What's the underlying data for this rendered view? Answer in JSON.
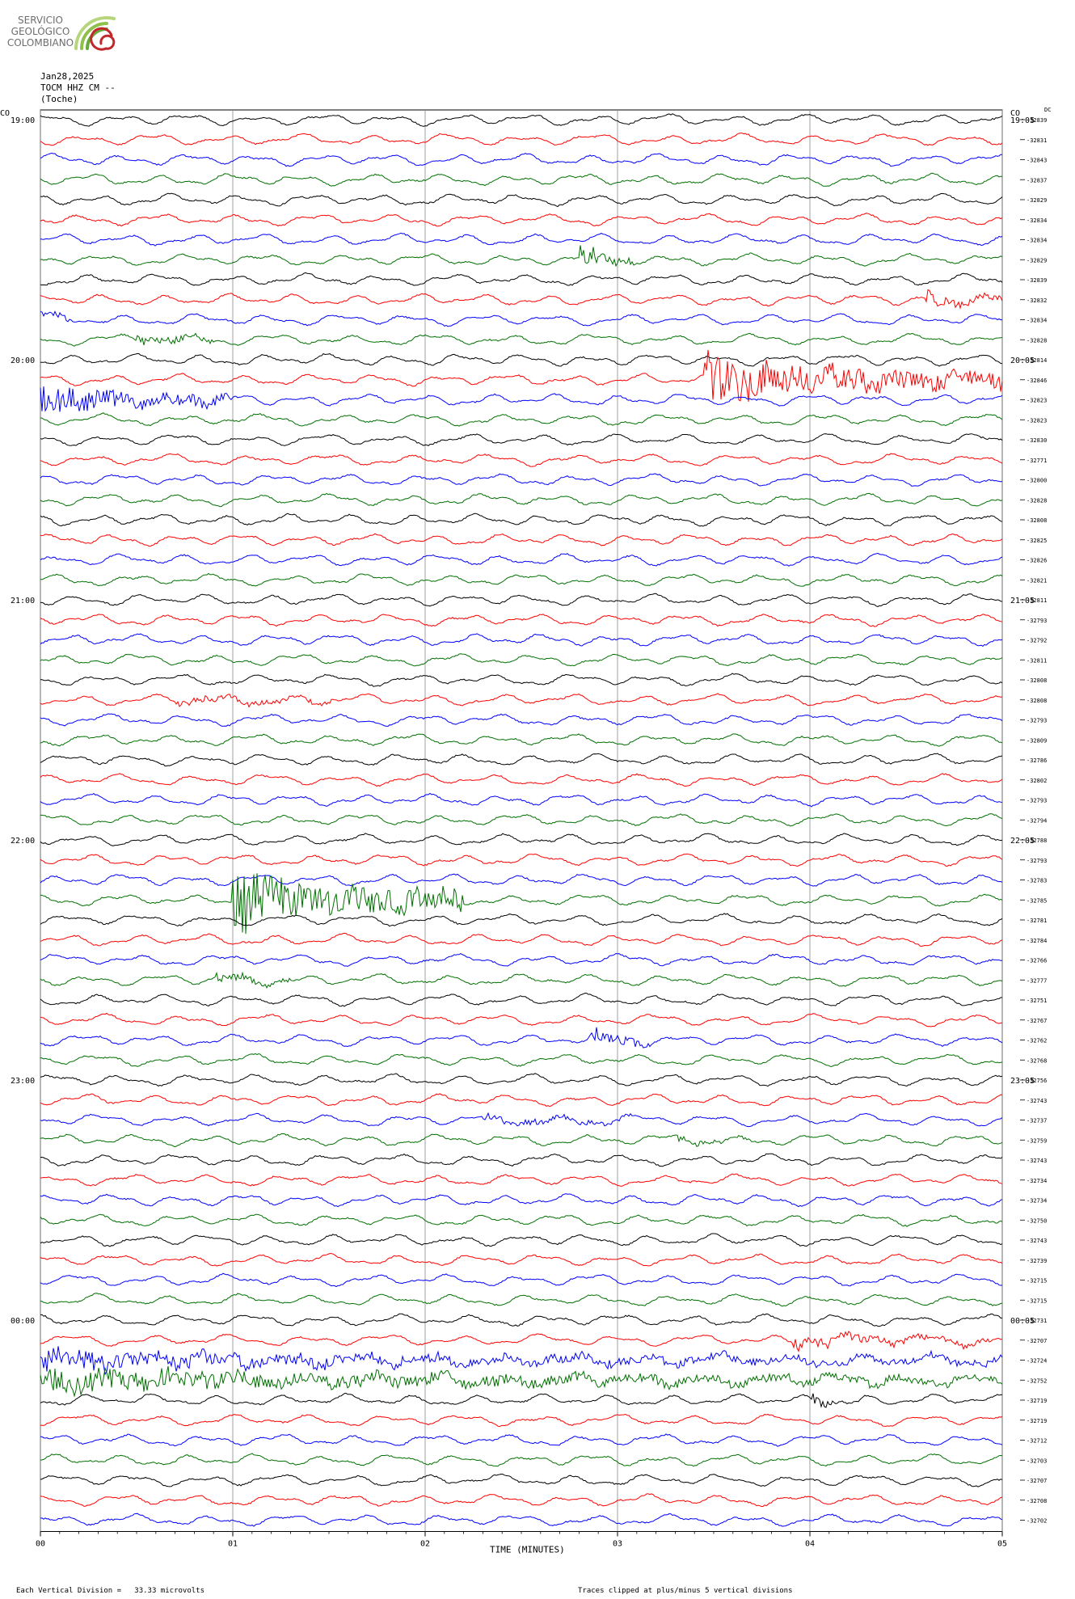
{
  "header": {
    "logo_text": [
      "SERVICIO",
      "GEOLÓGICO",
      "COLOMBIANO"
    ],
    "date": "Jan28,2025",
    "station": "TOCM HHZ CM --",
    "location": "(Toche)"
  },
  "chart_data": {
    "type": "line",
    "title": "",
    "xlabel": "TIME (MINUTES)",
    "x_ticks": [
      "00",
      "01",
      "02",
      "03",
      "04",
      "05"
    ],
    "xlim": [
      0,
      5
    ],
    "left_corner_label": "CO",
    "right_corner_label": "CO",
    "dc_label": "DC",
    "left_time_labels": [
      "19:00",
      "20:00",
      "21:00",
      "22:00",
      "23:00",
      "00:00"
    ],
    "right_time_labels": [
      "19:05",
      "20:05",
      "21:05",
      "22:05",
      "23:05",
      "00:05"
    ],
    "trace_colors": [
      "#000000",
      "#ff0000",
      "#0000ff",
      "#007000"
    ],
    "dc_offsets": [
      "-32839",
      "-32831",
      "-32843",
      "-32837",
      "-32829",
      "-32834",
      "-32834",
      "-32829",
      "-32839",
      "-32832",
      "-32834",
      "-32828",
      "-32814",
      "-32846",
      "-32823",
      "-32823",
      "-32830",
      "-32771",
      "-32800",
      "-32828",
      "-32808",
      "-32825",
      "-32826",
      "-32821",
      "-32811",
      "-32793",
      "-32792",
      "-32811",
      "-32808",
      "-32808",
      "-32793",
      "-32809",
      "-32786",
      "-32802",
      "-32793",
      "-32794",
      "-32788",
      "-32793",
      "-32783",
      "-32785",
      "-32781",
      "-32784",
      "-32766",
      "-32777",
      "-32751",
      "-32767",
      "-32762",
      "-32768",
      "-32756",
      "-32743",
      "-32737",
      "-32759",
      "-32743",
      "-32734",
      "-32734",
      "-32750",
      "-32743",
      "-32739",
      "-32715",
      "-32715",
      "-32731",
      "-32707",
      "-32724",
      "-32752",
      "-32719",
      "-32719",
      "-32712",
      "-32703",
      "-32707",
      "-32708",
      "-32702"
    ],
    "events": [
      {
        "trace": 7,
        "start_min": 2.8,
        "end_min": 3.1,
        "amplitude": 2.0
      },
      {
        "trace": 9,
        "start_min": 4.6,
        "end_min": 5.0,
        "amplitude": 1.5
      },
      {
        "trace": 10,
        "start_min": 0.0,
        "end_min": 0.15,
        "amplitude": 1.5
      },
      {
        "trace": 11,
        "start_min": 0.5,
        "end_min": 0.9,
        "amplitude": 1.2
      },
      {
        "trace": 13,
        "start_min": 3.45,
        "end_min": 5.0,
        "amplitude": 4.0
      },
      {
        "trace": 14,
        "start_min": 0.0,
        "end_min": 1.0,
        "amplitude": 2.5
      },
      {
        "trace": 29,
        "start_min": 0.7,
        "end_min": 1.6,
        "amplitude": 0.8
      },
      {
        "trace": 39,
        "start_min": 1.0,
        "end_min": 2.2,
        "amplitude": 5.0
      },
      {
        "trace": 43,
        "start_min": 0.9,
        "end_min": 1.3,
        "amplitude": 1.0
      },
      {
        "trace": 46,
        "start_min": 2.85,
        "end_min": 3.2,
        "amplitude": 1.5
      },
      {
        "trace": 50,
        "start_min": 2.3,
        "end_min": 3.1,
        "amplitude": 0.8
      },
      {
        "trace": 51,
        "start_min": 3.3,
        "end_min": 3.7,
        "amplitude": 0.8
      },
      {
        "trace": 61,
        "start_min": 3.9,
        "end_min": 5.0,
        "amplitude": 1.2
      },
      {
        "trace": 62,
        "start_min": 0.0,
        "end_min": 5.0,
        "amplitude": 1.6
      },
      {
        "trace": 63,
        "start_min": 0.0,
        "end_min": 5.0,
        "amplitude": 1.8
      },
      {
        "trace": 64,
        "start_min": 4.0,
        "end_min": 4.3,
        "amplitude": 1.0
      }
    ],
    "footer_left": "Each Vertical Division =   33.33 microvolts",
    "footer_right": "Traces clipped at plus/minus 5 vertical divisions"
  }
}
